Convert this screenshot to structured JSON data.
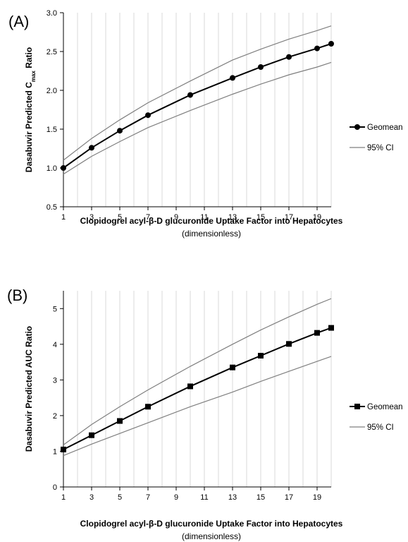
{
  "chart_data": [
    {
      "type": "line",
      "panel_label": "(A)",
      "ylabel": "Dasabuvir Predicted C",
      "ylabel_sub": "max",
      "ylabel_suffix": " Ratio",
      "xlabel": "Clopidogrel acyl-β-D glucuronide Uptake Factor into Hepatocytes",
      "xlabel_line2": "(dimensionless)",
      "x_ticks": [
        "1",
        "3",
        "5",
        "7",
        "9",
        "11",
        "13",
        "15",
        "17",
        "19"
      ],
      "y_ticks": [
        "0.5",
        "1.0",
        "1.5",
        "2.0",
        "2.5",
        "3.0"
      ],
      "xlim": [
        1,
        20
      ],
      "ylim": [
        0.5,
        3.0
      ],
      "grid": "vertical",
      "legend_position": "right",
      "series": [
        {
          "name": "Geomean",
          "marker": "circle",
          "x": [
            1,
            3,
            5,
            7,
            10,
            13,
            15,
            17,
            19,
            20
          ],
          "y": [
            1.0,
            1.26,
            1.48,
            1.68,
            1.94,
            2.16,
            2.3,
            2.43,
            2.54,
            2.6
          ]
        },
        {
          "name": "95% CI",
          "marker": "none",
          "x": [
            1,
            3,
            5,
            7,
            10,
            13,
            15,
            17,
            19,
            20
          ],
          "y": [
            1.1,
            1.38,
            1.62,
            1.84,
            2.12,
            2.39,
            2.53,
            2.66,
            2.77,
            2.83
          ]
        },
        {
          "name": "",
          "marker": "none",
          "x": [
            1,
            3,
            5,
            7,
            10,
            13,
            15,
            17,
            19,
            20
          ],
          "y": [
            0.92,
            1.15,
            1.34,
            1.52,
            1.74,
            1.95,
            2.08,
            2.2,
            2.3,
            2.36
          ]
        }
      ]
    },
    {
      "type": "line",
      "panel_label": "(B)",
      "ylabel": "Dasabuvir Predicted AUC Ratio",
      "ylabel_sub": "",
      "ylabel_suffix": "",
      "xlabel": "Clopidogrel acyl-β-D glucuronide Uptake Factor into Hepatocytes",
      "xlabel_line2": "(dimensionless)",
      "x_ticks": [
        "1",
        "3",
        "5",
        "7",
        "9",
        "11",
        "13",
        "15",
        "17",
        "19"
      ],
      "y_ticks": [
        "0",
        "1",
        "2",
        "3",
        "4",
        "5"
      ],
      "xlim": [
        1,
        20
      ],
      "ylim": [
        0,
        5.5
      ],
      "grid": "vertical",
      "legend_position": "right",
      "series": [
        {
          "name": "Geomean",
          "marker": "square",
          "x": [
            1,
            3,
            5,
            7,
            10,
            13,
            15,
            17,
            19,
            20
          ],
          "y": [
            1.05,
            1.45,
            1.85,
            2.25,
            2.82,
            3.35,
            3.68,
            4.01,
            4.32,
            4.46
          ]
        },
        {
          "name": "95% CI",
          "marker": "none",
          "x": [
            1,
            3,
            5,
            7,
            10,
            13,
            15,
            17,
            19,
            20
          ],
          "y": [
            1.18,
            1.75,
            2.25,
            2.72,
            3.38,
            4.0,
            4.4,
            4.77,
            5.12,
            5.28
          ]
        },
        {
          "name": "",
          "marker": "none",
          "x": [
            1,
            3,
            5,
            7,
            10,
            13,
            15,
            17,
            19,
            20
          ],
          "y": [
            0.88,
            1.2,
            1.5,
            1.8,
            2.25,
            2.66,
            2.96,
            3.24,
            3.52,
            3.66
          ]
        }
      ]
    }
  ]
}
